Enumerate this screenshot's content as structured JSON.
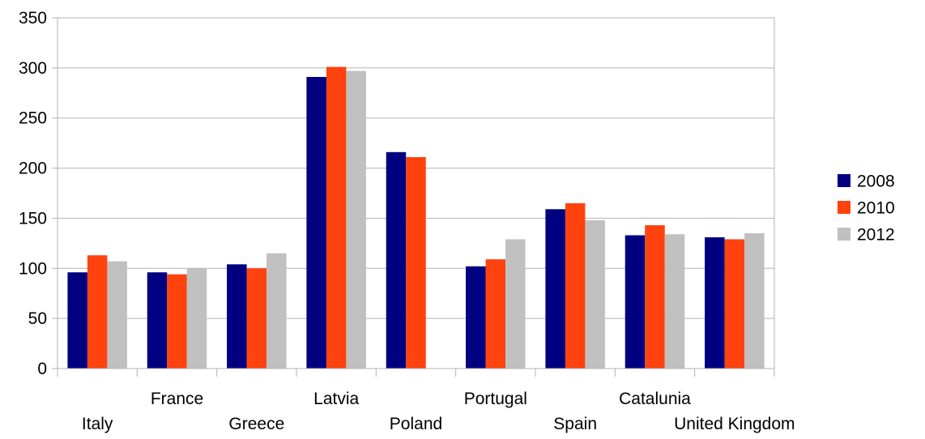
{
  "chart_data": {
    "type": "bar",
    "categories": [
      "Italy",
      "France",
      "Greece",
      "Latvia",
      "Poland",
      "Portugal",
      "Spain",
      "Catalunia",
      "United Kingdom"
    ],
    "series": [
      {
        "name": "2008",
        "color": "#000080",
        "values": [
          96,
          96,
          104,
          291,
          216,
          102,
          159,
          133,
          131
        ]
      },
      {
        "name": "2010",
        "color": "#ff420e",
        "values": [
          113,
          94,
          100,
          301,
          211,
          109,
          165,
          143,
          129
        ]
      },
      {
        "name": "2012",
        "color": "#c0c0c0",
        "values": [
          107,
          100,
          115,
          297,
          null,
          129,
          148,
          134,
          135
        ]
      }
    ],
    "ylim": [
      0,
      350
    ],
    "yticks": [
      "0",
      "50",
      "100",
      "150",
      "200",
      "250",
      "300",
      "350"
    ],
    "grid": true,
    "legend_position": "right",
    "title": "",
    "xlabel": "",
    "ylabel": ""
  }
}
